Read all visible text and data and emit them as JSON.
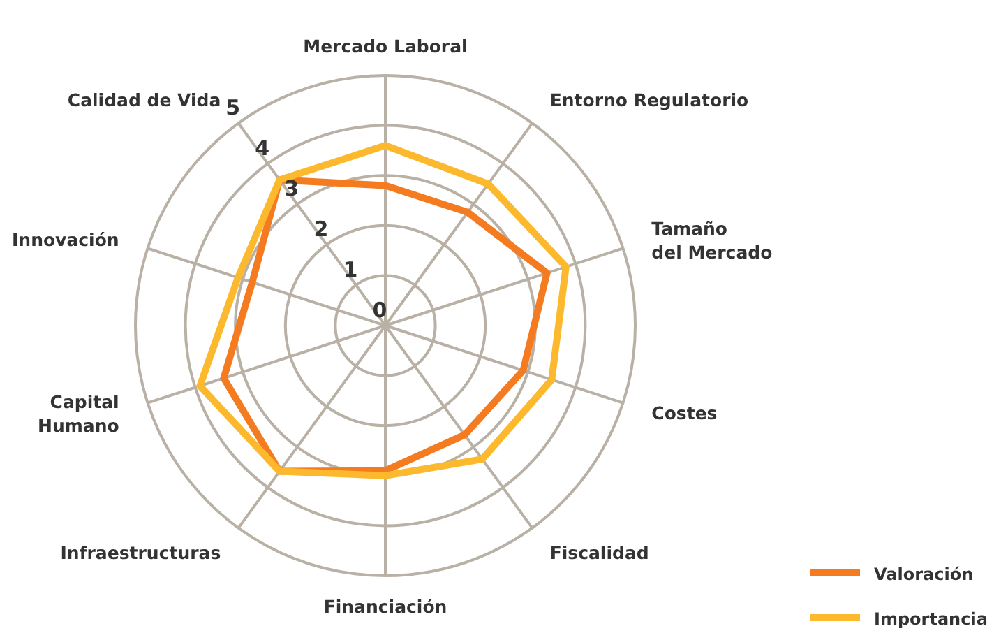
{
  "chart_data": {
    "type": "radar",
    "categories": [
      "Mercado Laboral",
      "Entorno Regulatorio",
      "Tamaño\ndel Mercado",
      "Costes",
      "Fiscalidad",
      "Financiación",
      "Infraestructuras",
      "Capital\nHumano",
      "Innovación",
      "Calidad de Vida"
    ],
    "series": [
      {
        "name": "Valoración",
        "color": "#f47b20",
        "values": [
          2.8,
          2.8,
          3.4,
          2.9,
          2.7,
          2.9,
          3.6,
          3.4,
          2.8,
          3.6
        ]
      },
      {
        "name": "Importancia",
        "color": "#fdb92e",
        "values": [
          3.6,
          3.5,
          3.8,
          3.5,
          3.3,
          3.0,
          3.6,
          3.9,
          3.1,
          3.6
        ]
      }
    ],
    "ylim": [
      0,
      5
    ],
    "yticks": [
      0,
      1,
      2,
      3,
      4,
      5
    ],
    "grid": true,
    "legend": "bottom right"
  }
}
